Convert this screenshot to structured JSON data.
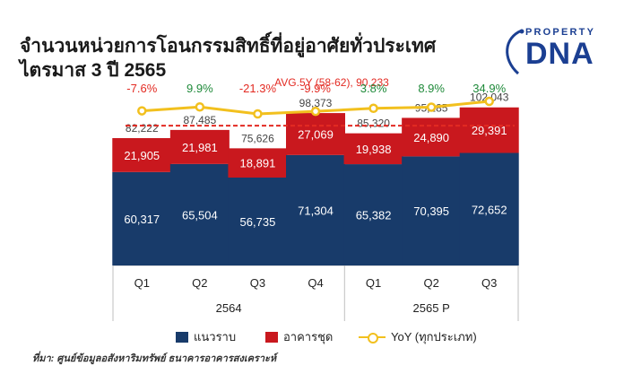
{
  "title_lines": [
    "จำนวนหน่วยการโอนกรรมสิทธิ์ที่อยู่อาศัยทั่วประเทศ",
    "ไตรมาส 3 ปี 2565"
  ],
  "logo": {
    "top": "PROPERTY",
    "main": "DNA"
  },
  "colors": {
    "low_rise": "#183b6a",
    "condo": "#c9181e",
    "yoy": "#f2c01e",
    "avg": "#e32a22",
    "positive": "#1f8a3a",
    "negative": "#e32a22"
  },
  "chart_data": {
    "type": "bar",
    "stacked": true,
    "categories": [
      "Q1",
      "Q2",
      "Q3",
      "Q4",
      "Q1",
      "Q2",
      "Q3"
    ],
    "groups": [
      {
        "label": "2564",
        "categories": [
          "Q1",
          "Q2",
          "Q3",
          "Q4"
        ]
      },
      {
        "label": "2565 P",
        "categories": [
          "Q1",
          "Q2",
          "Q3"
        ]
      }
    ],
    "series": [
      {
        "name": "แนวราบ",
        "values": [
          60317,
          65504,
          56735,
          71304,
          65382,
          70395,
          72652
        ]
      },
      {
        "name": "อาคารชุด",
        "values": [
          21905,
          21981,
          18891,
          27069,
          19938,
          24890,
          29391
        ]
      }
    ],
    "totals": [
      82222,
      87485,
      75626,
      98373,
      85320,
      95285,
      102043
    ],
    "totals_labels": [
      "82,222",
      "87,485",
      "75,626",
      "98,373",
      "85,320",
      "95,285",
      "102,043"
    ],
    "low_rise_labels": [
      "60,317",
      "65,504",
      "56,735",
      "71,304",
      "65,382",
      "70,395",
      "72,652"
    ],
    "condo_labels": [
      "21,905",
      "21,981",
      "18,891",
      "27,069",
      "19,938",
      "24,890",
      "29,391"
    ],
    "yoy": {
      "name": "YoY (ทุกประเภท)",
      "values": [
        -7.6,
        9.9,
        -21.3,
        -9.9,
        3.8,
        8.9,
        34.9
      ],
      "labels": [
        "-7.6%",
        "9.9%",
        "-21.3%",
        "-9.9%",
        "3.8%",
        "8.9%",
        "34.9%"
      ]
    },
    "average": {
      "value": 90233,
      "label": "AVG.5Y (58-62),  90,233"
    },
    "legend": [
      "แนวราบ",
      "อาคารชุด",
      "YoY (ทุกประเภท)"
    ],
    "ylim": [
      0,
      110000
    ]
  },
  "source": "ที่มา: ศูนย์ข้อมูลอสังหาริมทรัพย์ ธนาคารอาคารสงเคราะห์"
}
